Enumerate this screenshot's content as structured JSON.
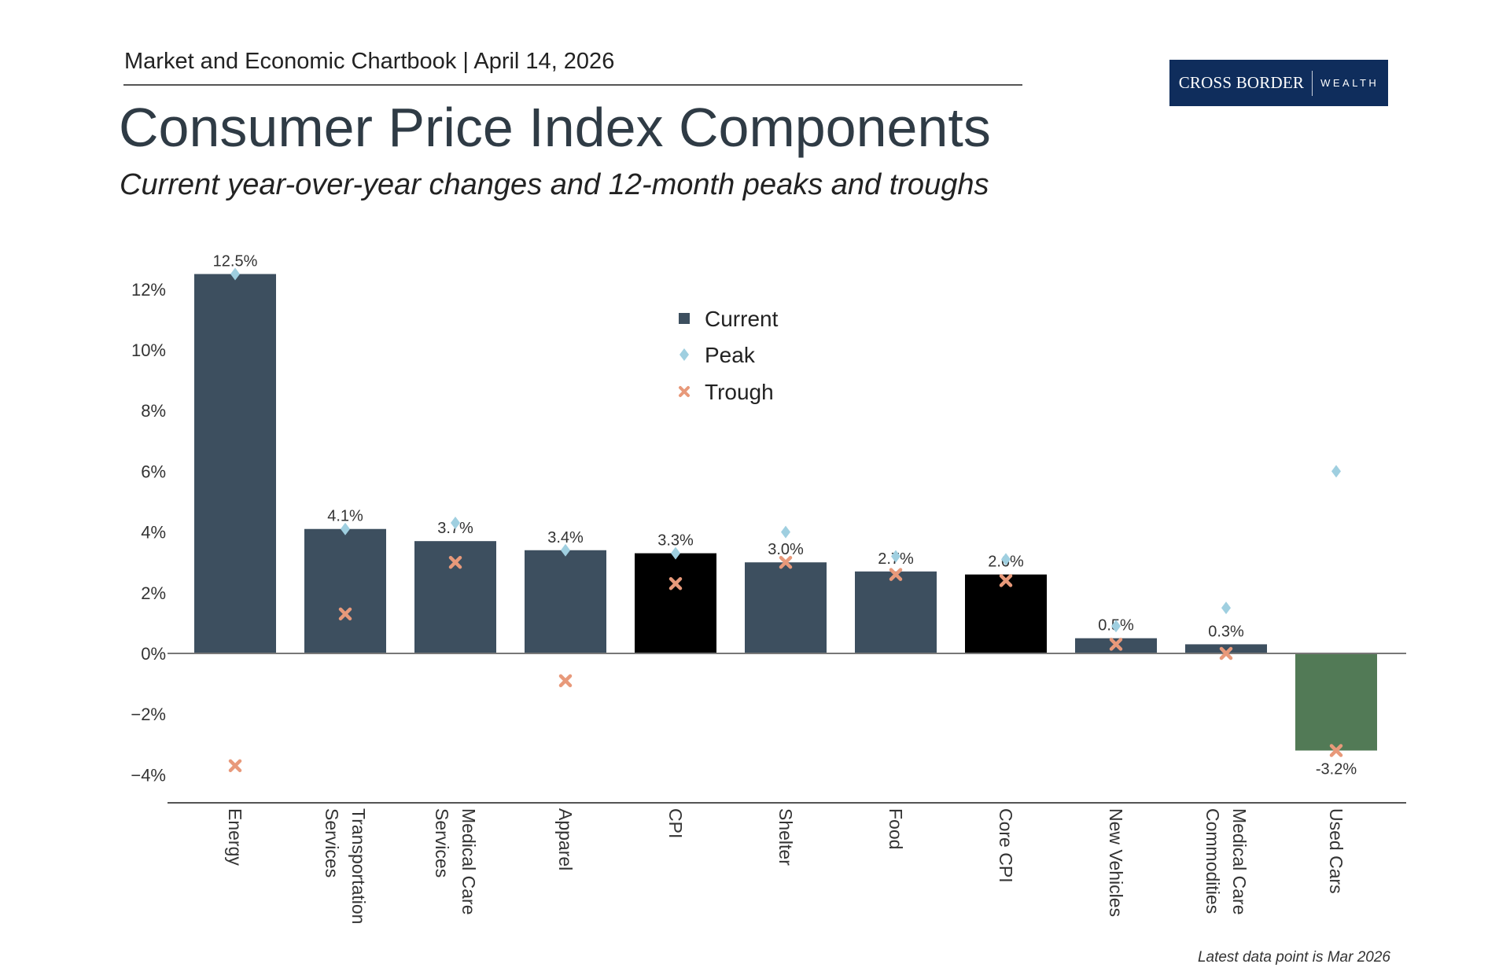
{
  "header": {
    "text": "Market and Economic Chartbook | April 14, 2026"
  },
  "logo": {
    "primary": "CROSS BORDER",
    "secondary": "WEALTH",
    "color": "#0f2d5c"
  },
  "footnote": "Latest data point is Mar 2026",
  "chart_data": {
    "type": "bar",
    "title": "Consumer Price Index Components",
    "subtitle": "Current year-over-year changes and 12-month peaks and troughs",
    "categories": [
      [
        "Energy"
      ],
      [
        "Transportation",
        "Services"
      ],
      [
        "Medical Care",
        "Services"
      ],
      [
        "Apparel"
      ],
      [
        "CPI"
      ],
      [
        "Shelter"
      ],
      [
        "Food"
      ],
      [
        "Core CPI"
      ],
      [
        "New Vehicles"
      ],
      [
        "Medical Care",
        "Commodities"
      ],
      [
        "Used Cars"
      ]
    ],
    "series": [
      {
        "name": "Current",
        "kind": "bar",
        "values": [
          12.5,
          4.1,
          3.7,
          3.4,
          3.3,
          3.0,
          2.7,
          2.6,
          0.5,
          0.3,
          -3.2
        ],
        "labels": [
          "12.5%",
          "4.1%",
          "3.7%",
          "3.4%",
          "3.3%",
          "3.0%",
          "2.7%",
          "2.6%",
          "0.5%",
          "0.3%",
          "-3.2%"
        ]
      },
      {
        "name": "Peak",
        "kind": "diamond",
        "values": [
          12.5,
          4.1,
          4.3,
          3.4,
          3.3,
          4.0,
          3.2,
          3.1,
          0.9,
          1.5,
          6.0
        ]
      },
      {
        "name": "Trough",
        "kind": "x",
        "values": [
          -3.7,
          1.3,
          3.0,
          -0.9,
          2.3,
          3.0,
          2.6,
          2.4,
          0.3,
          0.0,
          -3.2
        ]
      }
    ],
    "yticks": [
      "12%",
      "10%",
      "8%",
      "6%",
      "4%",
      "2%",
      "0%",
      "−2%",
      "−4%"
    ],
    "ytick_values": [
      12,
      10,
      8,
      6,
      4,
      2,
      0,
      -2,
      -4
    ],
    "ylim": [
      -4.9,
      13
    ],
    "grid": false,
    "legend_placement": "top-center",
    "colors": {
      "bar": "#3d4f5f",
      "highlight": "#000000",
      "negative": "#527a56",
      "peak": "#9fcfe0",
      "trough": "#e8997a"
    },
    "highlighted": [
      "CPI",
      "Core CPI"
    ]
  }
}
